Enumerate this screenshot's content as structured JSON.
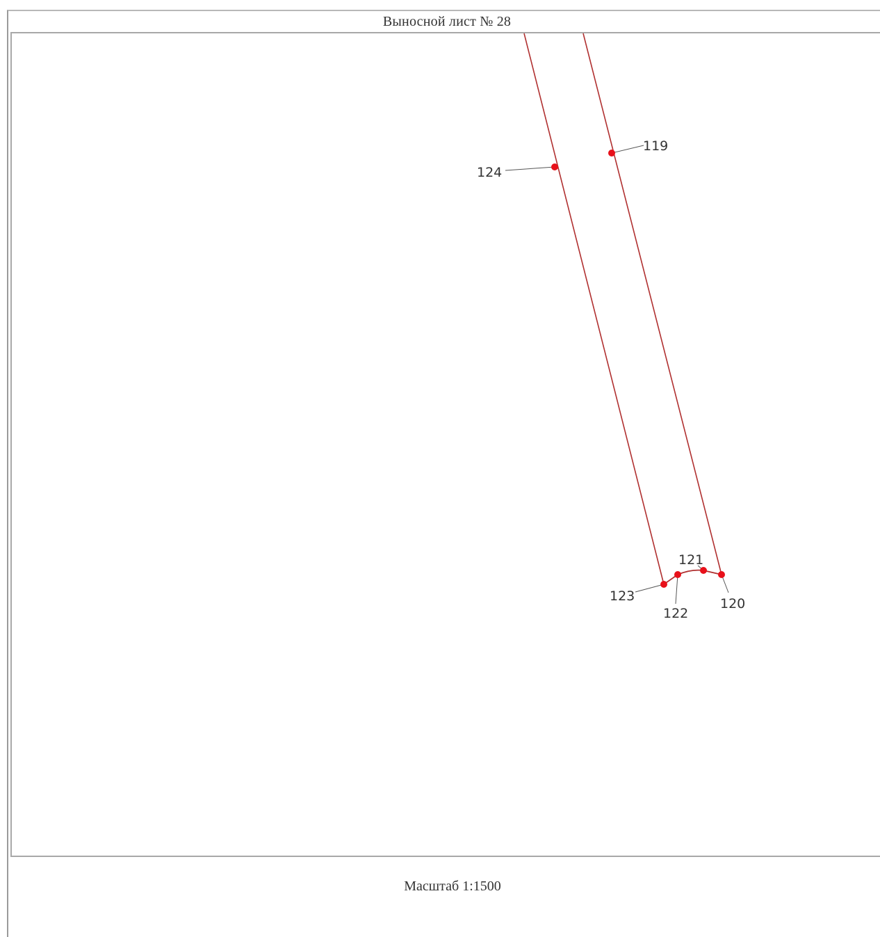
{
  "sheet": {
    "title": "Выносной лист № 28",
    "scale": "Масштаб 1:1500"
  },
  "colors": {
    "boundary": "#b03030",
    "point": "#e8101a",
    "leader": "#555555"
  },
  "points": [
    {
      "id": "119",
      "label": "119"
    },
    {
      "id": "120",
      "label": "120"
    },
    {
      "id": "121",
      "label": "121"
    },
    {
      "id": "122",
      "label": "122"
    },
    {
      "id": "123",
      "label": "123"
    },
    {
      "id": "124",
      "label": "124"
    }
  ]
}
